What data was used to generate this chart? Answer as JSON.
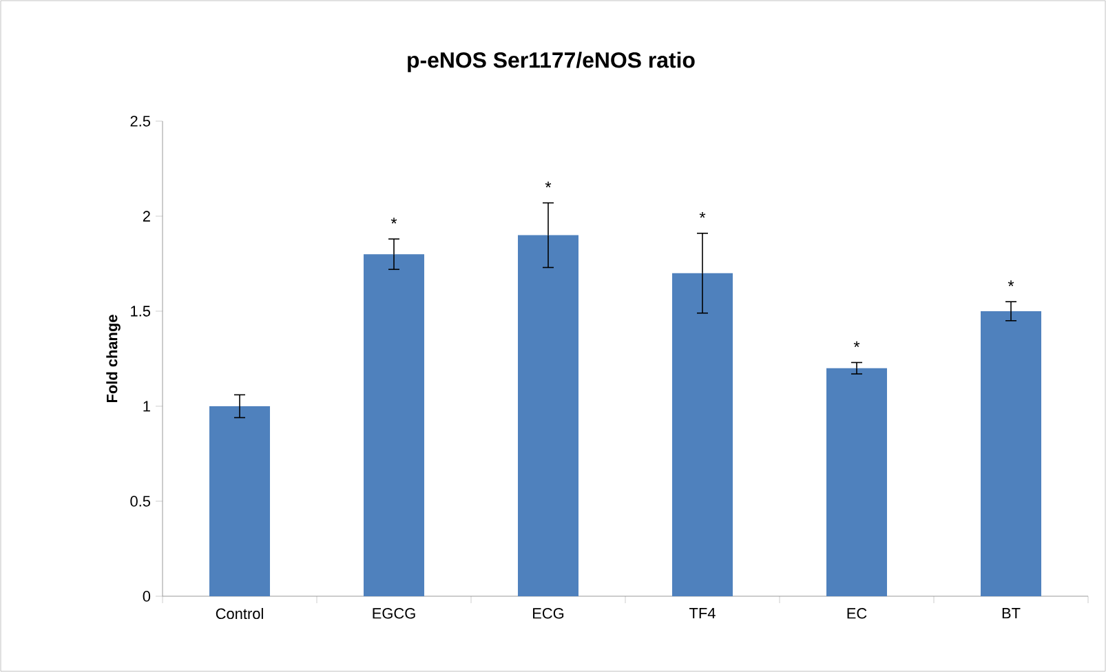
{
  "chart_data": {
    "type": "bar",
    "title": "p-eNOS Ser1177/eNOS ratio",
    "ylabel": "Fold change",
    "categories": [
      "Control",
      "EGCG",
      "ECG",
      "TF4",
      "EC",
      "BT"
    ],
    "values": [
      1.0,
      1.8,
      1.9,
      1.7,
      1.2,
      1.5
    ],
    "errors": [
      0.06,
      0.08,
      0.17,
      0.21,
      0.03,
      0.05
    ],
    "color": "#4f81bd",
    "ylim": [
      0,
      2.5
    ],
    "yticks": [
      0,
      0.5,
      1,
      1.5,
      2,
      2.5
    ],
    "grid": false,
    "annotations": [
      "*",
      "*",
      "*",
      "*",
      "*"
    ]
  }
}
